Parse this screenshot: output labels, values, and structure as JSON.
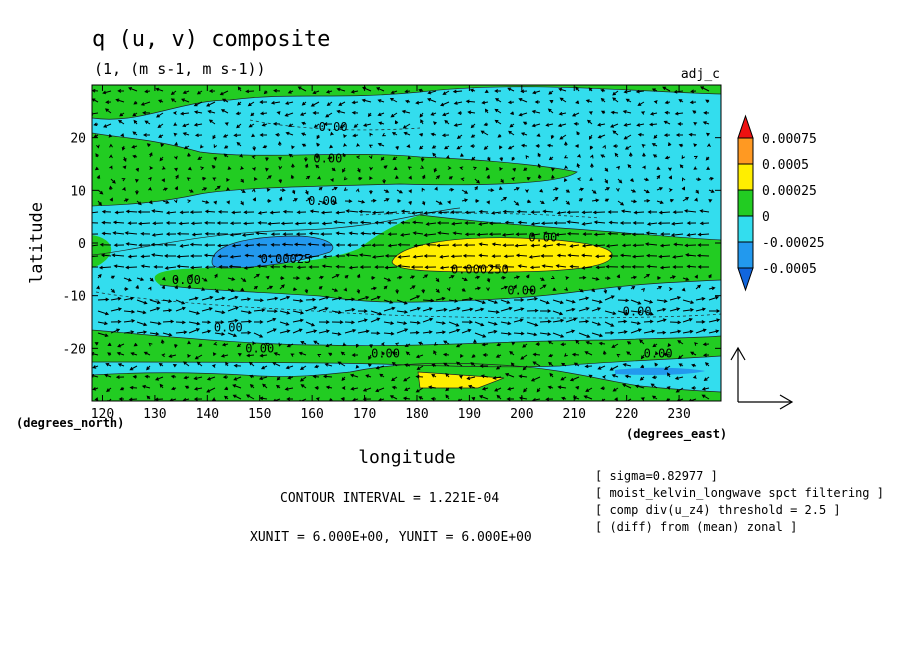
{
  "chart_data": {
    "type": "heatmap",
    "title": "q (u, v) composite",
    "subtitle": "(1, (m s-1, m s-1))",
    "tag": "adj_c",
    "xlabel": "longitude",
    "ylabel": "latitude",
    "x_unit_label": "(degrees_east)",
    "y_unit_label": "(degrees_north)",
    "xlim": [
      118,
      238
    ],
    "ylim": [
      -30,
      30
    ],
    "x_ticks": [
      {
        "value": 120,
        "label": "120"
      },
      {
        "value": 130,
        "label": "130"
      },
      {
        "value": 140,
        "label": "140"
      },
      {
        "value": 150,
        "label": "150"
      },
      {
        "value": 160,
        "label": "160"
      },
      {
        "value": 170,
        "label": "170"
      },
      {
        "value": 180,
        "label": "180"
      },
      {
        "value": 190,
        "label": "190"
      },
      {
        "value": 200,
        "label": "200"
      },
      {
        "value": 210,
        "label": "210"
      },
      {
        "value": 220,
        "label": "220"
      },
      {
        "value": 230,
        "label": "230"
      }
    ],
    "y_ticks": [
      {
        "value": 20,
        "label": "20"
      },
      {
        "value": 10,
        "label": "10"
      },
      {
        "value": 0,
        "label": "0"
      },
      {
        "value": -10,
        "label": "-10"
      },
      {
        "value": -20,
        "label": "-20"
      }
    ],
    "legend": {
      "placement": "right",
      "levels": [
        "0.00075",
        "0.0005",
        "0.00025",
        "0",
        "-0.00025",
        "-0.0005"
      ],
      "colors": [
        "#ee1111",
        "#ff9922",
        "#ffee00",
        "#22cc22",
        "#33ddee",
        "#2299ee",
        "#1166dd"
      ]
    },
    "contour_labels": [
      {
        "text": "0.00",
        "x": 164,
        "y": 22
      },
      {
        "text": "0.00",
        "x": 163,
        "y": 16
      },
      {
        "text": "0.00",
        "x": 162,
        "y": 8
      },
      {
        "text": "0.00",
        "x": 204,
        "y": 1
      },
      {
        "text": "0.00025",
        "x": 155,
        "y": -3
      },
      {
        "text": "0.000250",
        "x": 192,
        "y": -5
      },
      {
        "text": "0.00",
        "x": 136,
        "y": -7
      },
      {
        "text": "0.00",
        "x": 200,
        "y": -9
      },
      {
        "text": "0.00",
        "x": 222,
        "y": -13
      },
      {
        "text": "0.00",
        "x": 144,
        "y": -16
      },
      {
        "text": "0.00",
        "x": 150,
        "y": -20
      },
      {
        "text": "0.00",
        "x": 174,
        "y": -21
      },
      {
        "text": "0.00",
        "x": 226,
        "y": -21
      }
    ],
    "vector_reference": {
      "xunit": "6.000E+00",
      "yunit": "6.000E+00"
    }
  },
  "footer": {
    "contour_interval": "CONTOUR INTERVAL = 1.221E-04",
    "units_line": "XUNIT = 6.000E+00, YUNIT = 6.000E+00",
    "notes": [
      "[ sigma=0.82977 ]",
      "[ moist_kelvin_longwave spct filtering ]",
      "[ comp div(u_z4) threshold = 2.5 ]",
      "[ (diff) from (mean) zonal ]"
    ]
  }
}
